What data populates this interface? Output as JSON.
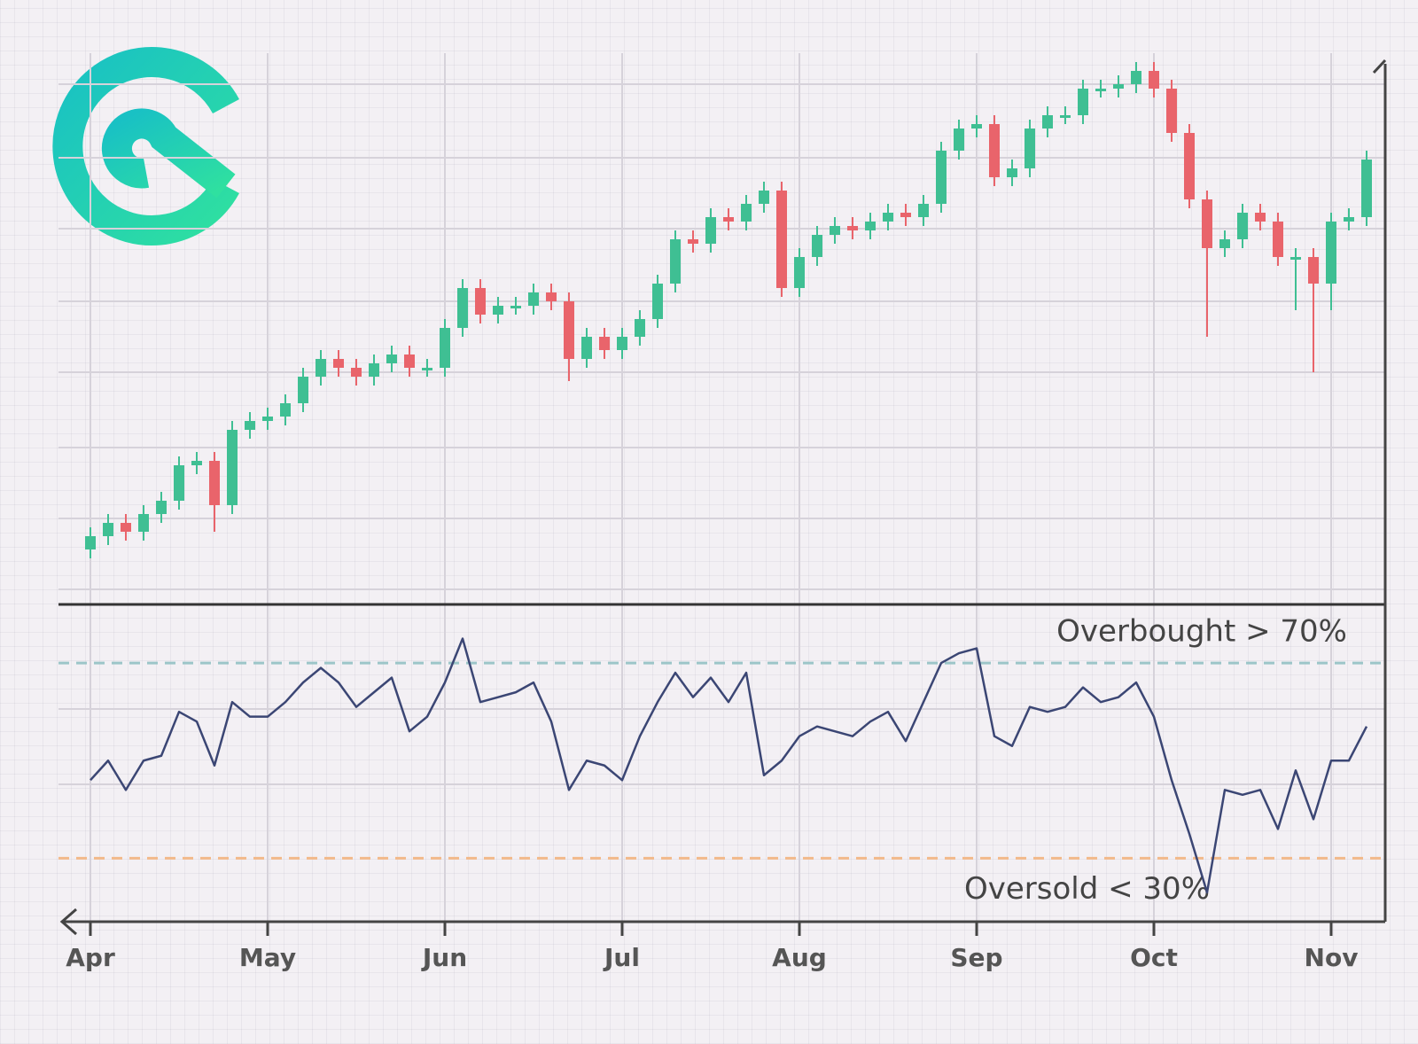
{
  "chart_data": [
    {
      "type": "candlestick",
      "up_color": "#3fbf93",
      "down_color": "#e9646b",
      "ylim": [
        0,
        124
      ],
      "open": [
        12,
        15,
        18,
        16,
        20,
        23,
        31,
        32,
        22,
        39,
        41,
        42,
        45,
        51,
        55,
        53,
        51,
        54,
        56,
        53,
        53,
        62,
        71,
        65,
        67,
        67,
        70,
        68,
        55,
        60,
        57,
        60,
        64,
        72,
        82,
        81,
        87,
        86,
        90,
        93,
        71,
        78,
        83,
        85,
        84,
        86,
        88,
        87,
        90,
        102,
        107,
        108,
        96,
        98,
        107,
        110,
        110,
        116,
        116,
        117,
        120,
        116,
        106,
        91,
        80,
        82,
        88,
        86,
        78,
        78,
        72,
        86,
        87
      ],
      "high": [
        17,
        20,
        20,
        22,
        25,
        33,
        34,
        34,
        41,
        43,
        44,
        47,
        53,
        57,
        57,
        55,
        56,
        58,
        58,
        55,
        64,
        73,
        73,
        69,
        69,
        72,
        72,
        70,
        62,
        62,
        62,
        66,
        74,
        84,
        84,
        89,
        89,
        92,
        95,
        95,
        80,
        85,
        87,
        87,
        88,
        90,
        90,
        92,
        104,
        109,
        110,
        110,
        100,
        109,
        112,
        112,
        118,
        118,
        119,
        122,
        122,
        118,
        108,
        93,
        84,
        90,
        90,
        88,
        80,
        80,
        88,
        89,
        102
      ],
      "low": [
        10,
        13,
        14,
        14,
        18,
        21,
        29,
        16,
        20,
        37,
        39,
        40,
        43,
        49,
        51,
        49,
        49,
        52,
        51,
        51,
        51,
        60,
        63,
        63,
        65,
        65,
        66,
        50,
        53,
        55,
        55,
        58,
        62,
        70,
        79,
        79,
        84,
        84,
        88,
        69,
        69,
        76,
        81,
        82,
        82,
        84,
        85,
        85,
        88,
        100,
        105,
        94,
        94,
        96,
        105,
        108,
        108,
        114,
        114,
        115,
        114,
        104,
        89,
        60,
        78,
        80,
        84,
        76,
        66,
        52,
        66,
        84,
        85
      ],
      "close": [
        15,
        18,
        16,
        20,
        23,
        31,
        32,
        22,
        39,
        41,
        42,
        45,
        51,
        55,
        53,
        51,
        54,
        56,
        53,
        53,
        62,
        71,
        65,
        67,
        67,
        70,
        68,
        55,
        60,
        57,
        60,
        64,
        72,
        82,
        81,
        87,
        86,
        90,
        93,
        71,
        78,
        83,
        85,
        84,
        86,
        88,
        87,
        90,
        102,
        107,
        108,
        96,
        98,
        107,
        110,
        110,
        116,
        116,
        117,
        120,
        116,
        106,
        91,
        80,
        82,
        88,
        86,
        78,
        78,
        72,
        86,
        87,
        100
      ]
    },
    {
      "type": "line",
      "color": "#3b4674",
      "ylim": [
        17,
        82
      ],
      "categories": [
        "Apr",
        null,
        null,
        null,
        null,
        null,
        null,
        null,
        null,
        null,
        "May",
        null,
        null,
        null,
        null,
        null,
        null,
        null,
        null,
        null,
        "Jun",
        null,
        null,
        null,
        null,
        null,
        null,
        null,
        null,
        null,
        "Jul",
        null,
        null,
        null,
        null,
        null,
        null,
        null,
        null,
        null,
        "Aug",
        null,
        null,
        null,
        null,
        null,
        null,
        null,
        null,
        null,
        "Sep",
        null,
        null,
        null,
        null,
        null,
        null,
        null,
        null,
        null,
        "Oct",
        null,
        null,
        null,
        null,
        null,
        null,
        null,
        null,
        null,
        "Nov",
        null,
        null
      ],
      "values": [
        46,
        50,
        44,
        50,
        51,
        60,
        58,
        49,
        62,
        59,
        59,
        62,
        66,
        69,
        66,
        61,
        64,
        67,
        56,
        59,
        66,
        75,
        62,
        63,
        64,
        66,
        58,
        44,
        50,
        49,
        46,
        55,
        62,
        68,
        63,
        67,
        62,
        68,
        47,
        50,
        55,
        57,
        56,
        55,
        58,
        60,
        54,
        62,
        70,
        72,
        73,
        55,
        53,
        61,
        60,
        61,
        65,
        62,
        63,
        66,
        59,
        46,
        35,
        23,
        44,
        43,
        44,
        36,
        48,
        38,
        50,
        50,
        57
      ],
      "reference_lines": [
        {
          "value": 70,
          "label": "Overbought > 70%",
          "color": "#9cc5c8"
        },
        {
          "value": 30,
          "label": "Oversold < 30%",
          "color": "#f2b98a"
        }
      ]
    }
  ]
}
